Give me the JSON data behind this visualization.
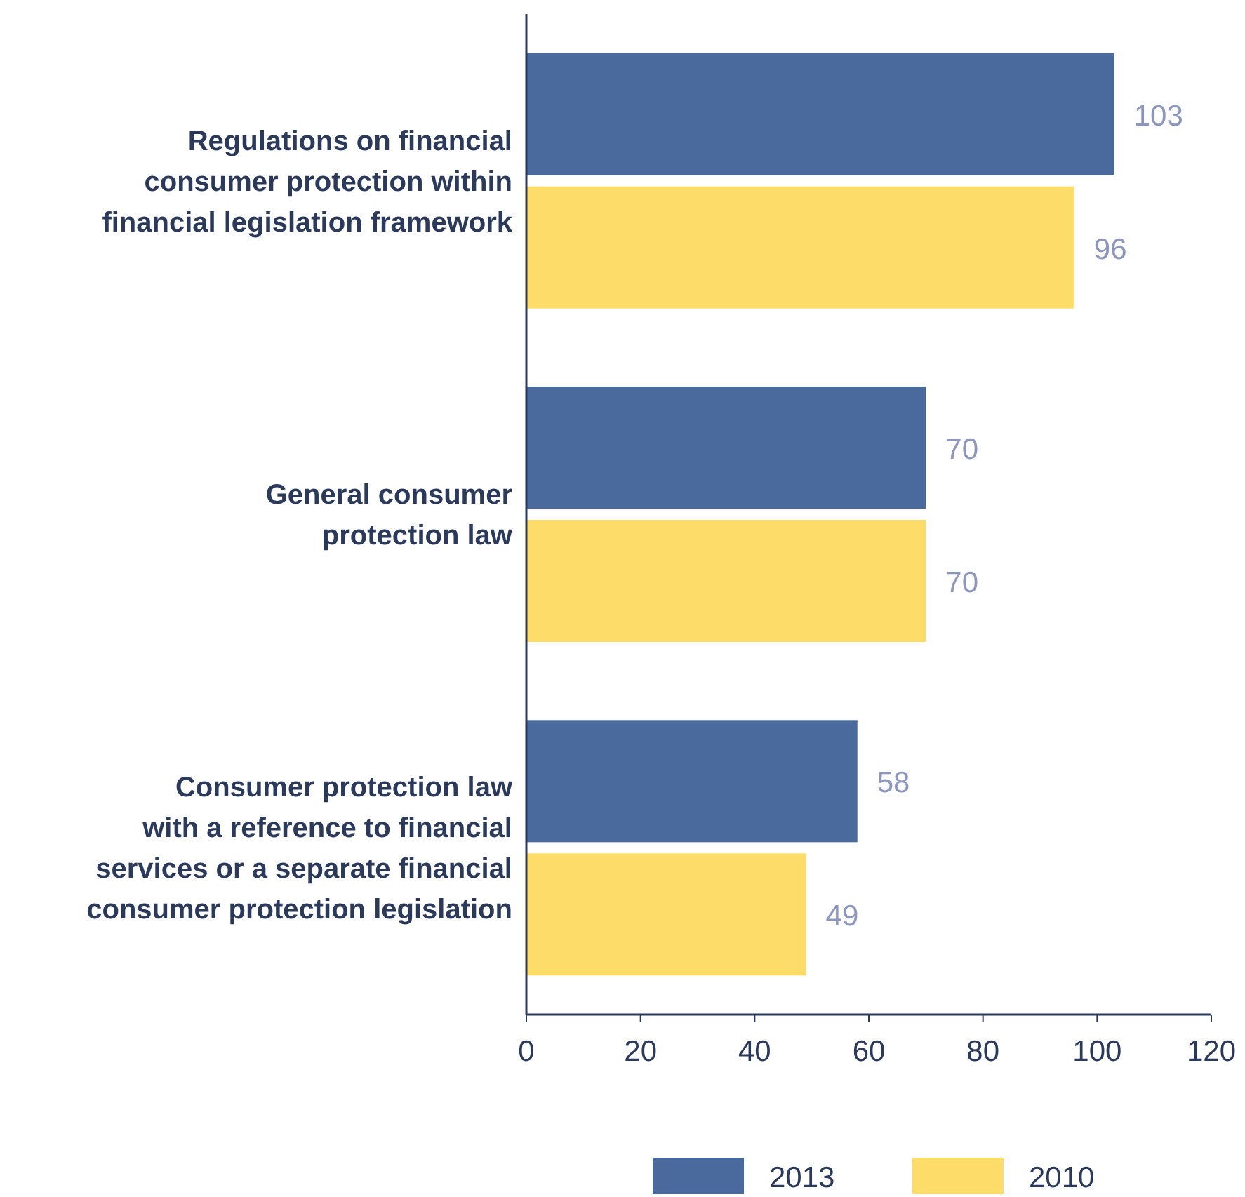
{
  "chart_data": {
    "type": "bar",
    "orientation": "horizontal",
    "categories": [
      "Regulations on financial\nconsumer protection within\nfinancial legislation framework",
      "General consumer\nprotection law",
      "Consumer protection law\nwith a reference to financial\nservices or a separate financial\nconsumer protection legislation"
    ],
    "series": [
      {
        "name": "2013",
        "color": "#4a6a9e",
        "values": [
          103,
          70,
          58
        ]
      },
      {
        "name": "2010",
        "color": "#fedc6a",
        "values": [
          96,
          70,
          49
        ]
      }
    ],
    "xlim": [
      0,
      120
    ],
    "xticks": [
      0,
      20,
      40,
      60,
      80,
      100,
      120
    ],
    "data_labels": true,
    "legend": "bottom",
    "grid": false
  }
}
